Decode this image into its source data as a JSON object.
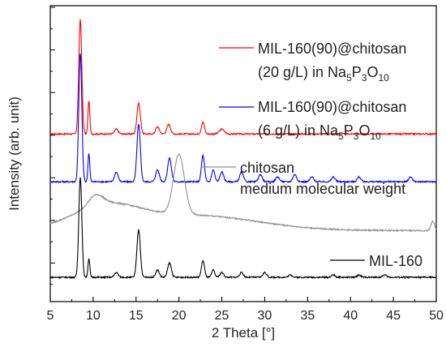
{
  "chart_data": {
    "type": "line",
    "xlabel": "2 Theta [°]",
    "ylabel": "Intensity (arb. unit)",
    "xlim": [
      5,
      50
    ],
    "xticks": [
      5,
      10,
      15,
      20,
      25,
      30,
      35,
      40,
      45,
      50
    ],
    "xtick_labels": [
      "5",
      "10",
      "15",
      "20",
      "25",
      "30",
      "35",
      "40",
      "45",
      "50"
    ],
    "y_ticks_labeled": false,
    "grid": false,
    "legend_placement": "inline labels beside each trace",
    "series": [
      {
        "name": "MIL-160(90)@chitosan (20 g/L) in Na5P3O10",
        "label_lines": [
          [
            {
              "t": "MIL-160(90)@chitosan"
            }
          ],
          [
            {
              "t": "(20 g/L) in Na"
            },
            {
              "t": "5",
              "sub": true
            },
            {
              "t": "P"
            },
            {
              "t": "3",
              "sub": true
            },
            {
              "t": "O"
            },
            {
              "t": "10",
              "sub": true
            }
          ]
        ],
        "color": "#ff0000",
        "baseline": 0.6,
        "background": 0,
        "peaks": [
          [
            8.5,
            0.48,
            0.25
          ],
          [
            9.5,
            0.14,
            0.15
          ],
          [
            12.7,
            0.02,
            0.3
          ],
          [
            15.3,
            0.13,
            0.28
          ],
          [
            17.5,
            0.03,
            0.3
          ],
          [
            18.8,
            0.04,
            0.3
          ],
          [
            22.8,
            0.05,
            0.25
          ],
          [
            25.0,
            0.02,
            0.4
          ]
        ],
        "points": [
          [
            5,
            0.6
          ],
          [
            8.0,
            0.64
          ],
          [
            8.5,
            1.08
          ],
          [
            9.0,
            0.7
          ],
          [
            9.5,
            0.74
          ],
          [
            10,
            0.62
          ],
          [
            12.7,
            0.62
          ],
          [
            15.3,
            0.73
          ],
          [
            17.5,
            0.63
          ],
          [
            18.8,
            0.64
          ],
          [
            22.8,
            0.65
          ],
          [
            25,
            0.62
          ],
          [
            30,
            0.61
          ],
          [
            40,
            0.61
          ],
          [
            50,
            0.6
          ]
        ]
      },
      {
        "name": "MIL-160(90)@chitosan (6 g/L) in Na5P3O10",
        "label_lines": [
          [
            {
              "t": "MIL-160(90)@chitosan"
            }
          ],
          [
            {
              "t": "(6 g/L) in Na"
            },
            {
              "t": "5",
              "sub": true
            },
            {
              "t": "P"
            },
            {
              "t": "3",
              "sub": true
            },
            {
              "t": "O"
            },
            {
              "t": "10",
              "sub": true
            }
          ]
        ],
        "color": "#0000ff",
        "baseline": 0.4,
        "background": 0,
        "peaks": [
          [
            8.5,
            0.54,
            0.25
          ],
          [
            9.5,
            0.12,
            0.15
          ],
          [
            12.7,
            0.04,
            0.3
          ],
          [
            15.3,
            0.24,
            0.28
          ],
          [
            17.5,
            0.05,
            0.3
          ],
          [
            18.9,
            0.1,
            0.3
          ],
          [
            22.8,
            0.11,
            0.25
          ],
          [
            24.0,
            0.05,
            0.25
          ],
          [
            25.0,
            0.04,
            0.3
          ],
          [
            27.3,
            0.04,
            0.3
          ],
          [
            29.5,
            0.03,
            0.3
          ],
          [
            31.5,
            0.02,
            0.3
          ],
          [
            33.5,
            0.03,
            0.3
          ],
          [
            35.5,
            0.02,
            0.3
          ],
          [
            38.0,
            0.02,
            0.3
          ],
          [
            41.0,
            0.02,
            0.3
          ],
          [
            47.0,
            0.02,
            0.3
          ]
        ],
        "points": [
          [
            5,
            0.4
          ],
          [
            8.5,
            0.94
          ],
          [
            9.5,
            0.52
          ],
          [
            12.7,
            0.44
          ],
          [
            15.3,
            0.64
          ],
          [
            17.5,
            0.45
          ],
          [
            18.9,
            0.5
          ],
          [
            22.8,
            0.51
          ],
          [
            24,
            0.45
          ],
          [
            27.3,
            0.44
          ],
          [
            30,
            0.43
          ],
          [
            40,
            0.42
          ],
          [
            50,
            0.4
          ]
        ]
      },
      {
        "name": "chitosan medium molecular weight",
        "label_lines": [
          [
            {
              "t": "chitosan"
            }
          ],
          [
            {
              "t": "medium molecular weight"
            }
          ]
        ],
        "color": "#909090",
        "baseline": 0.2,
        "background": 1,
        "peaks": [
          [
            10.3,
            0.045,
            1.2
          ],
          [
            20.0,
            0.25,
            0.9
          ],
          [
            49.6,
            0.04,
            0.3
          ]
        ],
        "points": [
          [
            5,
            0.2
          ],
          [
            8,
            0.25
          ],
          [
            10.3,
            0.29
          ],
          [
            13,
            0.29
          ],
          [
            16,
            0.33
          ],
          [
            18,
            0.36
          ],
          [
            20,
            0.6
          ],
          [
            21,
            0.51
          ],
          [
            22,
            0.42
          ],
          [
            25,
            0.34
          ],
          [
            30,
            0.29
          ],
          [
            35,
            0.26
          ],
          [
            40,
            0.24
          ],
          [
            45,
            0.23
          ],
          [
            49.6,
            0.27
          ],
          [
            50,
            0.21
          ]
        ]
      },
      {
        "name": "MIL-160",
        "label_lines": [
          [
            {
              "t": "MIL-160"
            }
          ]
        ],
        "color": "#000000",
        "baseline": 0.0,
        "background": 0,
        "peaks": [
          [
            8.5,
            0.42,
            0.25
          ],
          [
            9.5,
            0.08,
            0.15
          ],
          [
            12.7,
            0.02,
            0.3
          ],
          [
            15.3,
            0.2,
            0.28
          ],
          [
            17.5,
            0.03,
            0.3
          ],
          [
            18.9,
            0.06,
            0.3
          ],
          [
            22.8,
            0.07,
            0.25
          ],
          [
            24.0,
            0.03,
            0.25
          ],
          [
            25.0,
            0.02,
            0.3
          ],
          [
            27.3,
            0.02,
            0.3
          ],
          [
            30.0,
            0.02,
            0.3
          ],
          [
            33.0,
            0.01,
            0.3
          ],
          [
            38.0,
            0.01,
            0.3
          ],
          [
            41.0,
            0.01,
            0.3
          ],
          [
            44.0,
            0.01,
            0.3
          ]
        ],
        "points": [
          [
            5,
            0.0
          ],
          [
            8.5,
            0.43
          ],
          [
            9.5,
            0.09
          ],
          [
            12.7,
            0.03
          ],
          [
            15.3,
            0.21
          ],
          [
            17.5,
            0.04
          ],
          [
            18.9,
            0.07
          ],
          [
            22.8,
            0.08
          ],
          [
            25,
            0.03
          ],
          [
            30,
            0.02
          ],
          [
            40,
            0.01
          ],
          [
            50,
            0.0
          ]
        ]
      }
    ]
  }
}
